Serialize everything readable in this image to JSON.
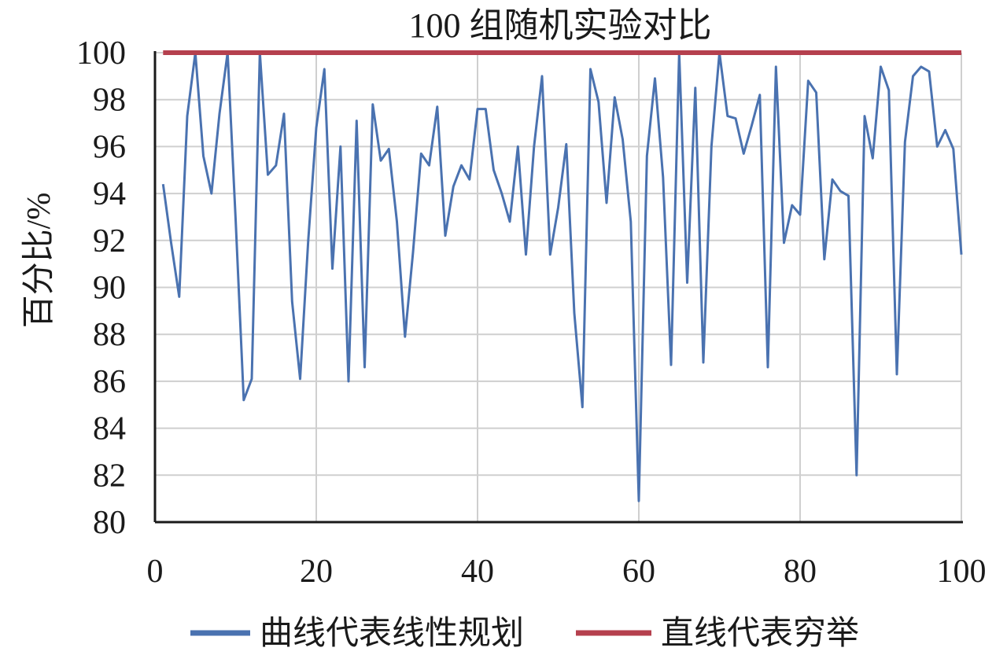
{
  "chart_data": {
    "type": "line",
    "title": "100 组随机实验对比",
    "xlabel": "",
    "ylabel": "百分比/%",
    "xlim": [
      0,
      100
    ],
    "ylim": [
      80,
      100
    ],
    "x_ticks": [
      "0",
      "20",
      "40",
      "60",
      "80",
      "100"
    ],
    "y_ticks": [
      "80",
      "82",
      "84",
      "86",
      "88",
      "90",
      "92",
      "94",
      "96",
      "98",
      "100"
    ],
    "grid": true,
    "legend_position": "bottom",
    "series": [
      {
        "name": "曲线代表线性规划",
        "color": "#4a72b0",
        "x": [
          1,
          2,
          3,
          4,
          5,
          6,
          7,
          8,
          9,
          10,
          11,
          12,
          13,
          14,
          15,
          16,
          17,
          18,
          19,
          20,
          21,
          22,
          23,
          24,
          25,
          26,
          27,
          28,
          29,
          30,
          31,
          32,
          33,
          34,
          35,
          36,
          37,
          38,
          39,
          40,
          41,
          42,
          43,
          44,
          45,
          46,
          47,
          48,
          49,
          50,
          51,
          52,
          53,
          54,
          55,
          56,
          57,
          58,
          59,
          60,
          61,
          62,
          63,
          64,
          65,
          66,
          67,
          68,
          69,
          70,
          71,
          72,
          73,
          74,
          75,
          76,
          77,
          78,
          79,
          80,
          81,
          82,
          83,
          84,
          85,
          86,
          87,
          88,
          89,
          90,
          91,
          92,
          93,
          94,
          95,
          96,
          97,
          98,
          99,
          100
        ],
        "values": [
          94.4,
          91.9,
          89.6,
          97.3,
          100,
          95.6,
          94.0,
          97.4,
          100,
          92.9,
          85.2,
          86.1,
          100,
          94.8,
          95.2,
          97.4,
          89.4,
          86.1,
          92.0,
          96.8,
          99.3,
          90.8,
          96.0,
          86.0,
          97.1,
          86.6,
          97.8,
          95.4,
          95.9,
          92.8,
          87.9,
          91.5,
          95.7,
          95.2,
          97.7,
          92.2,
          94.3,
          95.2,
          94.6,
          97.6,
          97.6,
          95.0,
          94.0,
          92.8,
          96.0,
          91.4,
          96.0,
          99.0,
          91.4,
          93.4,
          96.1,
          88.9,
          84.9,
          99.3,
          97.9,
          93.6,
          98.1,
          96.3,
          92.8,
          80.9,
          95.6,
          98.9,
          94.7,
          86.7,
          100,
          90.2,
          98.5,
          86.8,
          96.0,
          100,
          97.3,
          97.2,
          95.7,
          96.9,
          98.2,
          86.6,
          99.4,
          91.9,
          93.5,
          93.1,
          98.8,
          98.3,
          91.2,
          94.6,
          94.1,
          93.9,
          82.0,
          97.3,
          95.5,
          99.4,
          98.4,
          86.3,
          96.2,
          99.0,
          99.4,
          99.2,
          96.0,
          96.7,
          95.9,
          91.4
        ]
      },
      {
        "name": "直线代表穷举",
        "color": "#b5404e",
        "x": [
          1,
          100
        ],
        "values": [
          100,
          100
        ]
      }
    ]
  }
}
